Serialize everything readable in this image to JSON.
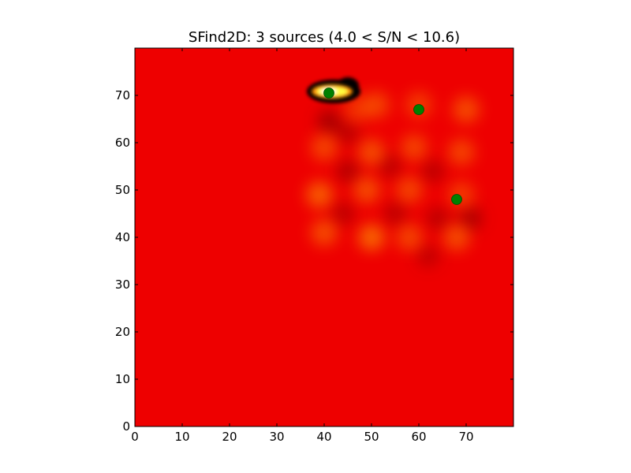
{
  "chart_data": {
    "type": "heatmap",
    "title": "SFind2D: 3 sources (4.0 < S/N < 10.6)",
    "xlabel": "",
    "ylabel": "",
    "xlim": [
      0,
      80
    ],
    "ylim": [
      0,
      80
    ],
    "x_ticks": [
      0,
      10,
      20,
      30,
      40,
      50,
      60,
      70
    ],
    "y_ticks": [
      0,
      10,
      20,
      30,
      40,
      50,
      60,
      70
    ],
    "grid": false,
    "colormap": "hot",
    "background_color": "#ee0000",
    "marker_color": "#008000",
    "sources": [
      {
        "x": 41,
        "y": 70.5
      },
      {
        "x": 60,
        "y": 67
      },
      {
        "x": 68,
        "y": 48
      }
    ],
    "bright_blobs": [
      {
        "x": 39,
        "y": 49,
        "level": 0.55
      },
      {
        "x": 40,
        "y": 59,
        "level": 0.4
      },
      {
        "x": 40,
        "y": 41,
        "level": 0.45
      },
      {
        "x": 47,
        "y": 67,
        "level": 0.3
      },
      {
        "x": 51,
        "y": 68,
        "level": 0.4
      },
      {
        "x": 60,
        "y": 68,
        "level": 0.35
      },
      {
        "x": 70,
        "y": 67,
        "level": 0.45
      },
      {
        "x": 50,
        "y": 58,
        "level": 0.45
      },
      {
        "x": 59,
        "y": 59,
        "level": 0.4
      },
      {
        "x": 69,
        "y": 58,
        "level": 0.4
      },
      {
        "x": 49,
        "y": 50,
        "level": 0.45
      },
      {
        "x": 58,
        "y": 50,
        "level": 0.4
      },
      {
        "x": 69,
        "y": 49,
        "level": 0.35
      },
      {
        "x": 50,
        "y": 40,
        "level": 0.6
      },
      {
        "x": 58,
        "y": 40,
        "level": 0.4
      },
      {
        "x": 68,
        "y": 40,
        "level": 0.45
      }
    ],
    "dark_blobs": [
      {
        "x": 41,
        "y": 64.5,
        "level": 0.5
      },
      {
        "x": 45,
        "y": 62,
        "level": 0.35
      },
      {
        "x": 45,
        "y": 54,
        "level": 0.4
      },
      {
        "x": 54,
        "y": 55,
        "level": 0.35
      },
      {
        "x": 63,
        "y": 54,
        "level": 0.35
      },
      {
        "x": 44,
        "y": 45,
        "level": 0.35
      },
      {
        "x": 55,
        "y": 45,
        "level": 0.35
      },
      {
        "x": 64,
        "y": 44,
        "level": 0.35
      },
      {
        "x": 71,
        "y": 44,
        "level": 0.45
      },
      {
        "x": 62,
        "y": 36,
        "level": 0.3
      }
    ],
    "saturated_source": {
      "x": 42,
      "y": 71,
      "level": 1.0
    }
  }
}
